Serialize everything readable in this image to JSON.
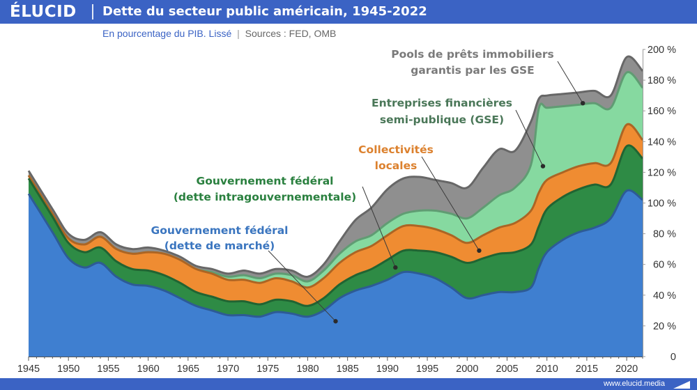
{
  "header": {
    "logo": "ÉLUCID",
    "title": "Dette du secteur public américain, 1945-2022",
    "subtitle_unit": "En pourcentage du PIB. Lissé",
    "subtitle_separator": "|",
    "subtitle_sources": "Sources : FED, OMB"
  },
  "footer": {
    "website": "www.elucid.media"
  },
  "colors": {
    "federal_market": "#3f7fd0",
    "intragov": "#2e8b45",
    "local": "#ef8c32",
    "gse": "#86d9a0",
    "pools": "#8f8f8f",
    "brand": "#3b63c4"
  },
  "chart_data": {
    "type": "area",
    "stacked": true,
    "xlabel": "",
    "ylabel": "",
    "xlim": [
      1945,
      2022
    ],
    "ylim": [
      0,
      200
    ],
    "x_ticks": [
      1945,
      1950,
      1955,
      1960,
      1965,
      1970,
      1975,
      1980,
      1985,
      1990,
      1995,
      2000,
      2005,
      2010,
      2015,
      2020
    ],
    "y_ticks": [
      {
        "value": 0,
        "label": "0"
      },
      {
        "value": 20,
        "label": "20 %"
      },
      {
        "value": 40,
        "label": "40 %"
      },
      {
        "value": 60,
        "label": "60 %"
      },
      {
        "value": 80,
        "label": "80 %"
      },
      {
        "value": 100,
        "label": "100 %"
      },
      {
        "value": 120,
        "label": "120 %"
      },
      {
        "value": 140,
        "label": "140 %"
      },
      {
        "value": 160,
        "label": "160 %"
      },
      {
        "value": 180,
        "label": "180 %"
      },
      {
        "value": 200,
        "label": "200 %"
      }
    ],
    "grid": false,
    "legend": "inline-annotations",
    "x": [
      1945,
      1948,
      1950,
      1952,
      1954,
      1956,
      1958,
      1960,
      1962,
      1964,
      1966,
      1968,
      1970,
      1972,
      1974,
      1976,
      1978,
      1980,
      1982,
      1984,
      1986,
      1988,
      1990,
      1992,
      1994,
      1996,
      1998,
      2000,
      2002,
      2004,
      2006,
      2008,
      2009,
      2010,
      2012,
      2014,
      2016,
      2018,
      2020,
      2022
    ],
    "series": [
      {
        "name": "Gouvernement fédéral (dette de marché)",
        "color_key": "federal_market",
        "values": [
          106,
          81,
          64,
          58,
          61,
          52,
          47,
          46,
          43,
          38,
          33,
          30,
          27,
          27,
          26,
          29,
          28,
          26,
          30,
          38,
          43,
          46,
          50,
          55,
          54,
          51,
          45,
          38,
          40,
          42,
          42,
          45,
          58,
          68,
          76,
          81,
          84,
          90,
          108,
          102
        ]
      },
      {
        "name": "Gouvernement fédéral (dette intragouvernementale)",
        "color_key": "intragov",
        "values": [
          10,
          10,
          10,
          10,
          10,
          10,
          10,
          10,
          10,
          10,
          9,
          9,
          9,
          9,
          8,
          8,
          8,
          7,
          8,
          9,
          10,
          11,
          13,
          14,
          15,
          17,
          20,
          23,
          24,
          25,
          26,
          28,
          27,
          28,
          28,
          28,
          28,
          22,
          29,
          27
        ]
      },
      {
        "name": "Collectivités locales",
        "color_key": "local",
        "values": [
          2,
          2,
          3,
          5,
          7,
          8,
          10,
          12,
          14,
          15,
          15,
          15,
          14,
          14,
          14,
          14,
          13,
          12,
          13,
          14,
          15,
          15,
          16,
          16,
          16,
          15,
          14,
          13,
          15,
          17,
          19,
          22,
          22,
          19,
          16,
          15,
          14,
          14,
          14,
          12
        ]
      },
      {
        "name": "Entreprises financières semi-publique (GSE)",
        "color_key": "gse",
        "values": [
          0,
          0,
          0,
          0,
          0,
          0,
          0,
          0,
          0,
          0,
          0,
          1,
          2,
          3,
          3,
          3,
          4,
          4,
          5,
          6,
          7,
          7,
          8,
          8,
          10,
          12,
          14,
          16,
          18,
          21,
          23,
          30,
          55,
          47,
          43,
          40,
          39,
          36,
          34,
          34
        ]
      },
      {
        "name": "Pools de prêts immobiliers garantis par les GSE",
        "color_key": "pools",
        "values": [
          3,
          3,
          3,
          3,
          3,
          3,
          3,
          3,
          2,
          2,
          2,
          2,
          2,
          3,
          3,
          3,
          3,
          3,
          4,
          8,
          14,
          18,
          22,
          23,
          22,
          20,
          20,
          20,
          26,
          30,
          24,
          28,
          6,
          8,
          8,
          8,
          8,
          8,
          10,
          11
        ]
      }
    ],
    "annotations": [
      {
        "key": "federal_market",
        "lines": [
          "Gouvernement fédéral",
          "(dette de marché)"
        ],
        "point": [
          1983.5,
          23
        ]
      },
      {
        "key": "intragov",
        "lines": [
          "Gouvernement fédéral",
          "(dette intragouvernementale)"
        ],
        "point": [
          1991,
          58
        ]
      },
      {
        "key": "local",
        "lines": [
          "Collectivités",
          "locales"
        ],
        "point": [
          2001.5,
          69
        ]
      },
      {
        "key": "gse",
        "lines": [
          "Entreprises financières",
          "semi-publique (GSE)"
        ],
        "point": [
          2009.5,
          124
        ]
      },
      {
        "key": "pools",
        "lines": [
          "Pools de prêts immobiliers",
          "garantis par les GSE"
        ],
        "point": [
          2014.5,
          165
        ]
      }
    ]
  }
}
